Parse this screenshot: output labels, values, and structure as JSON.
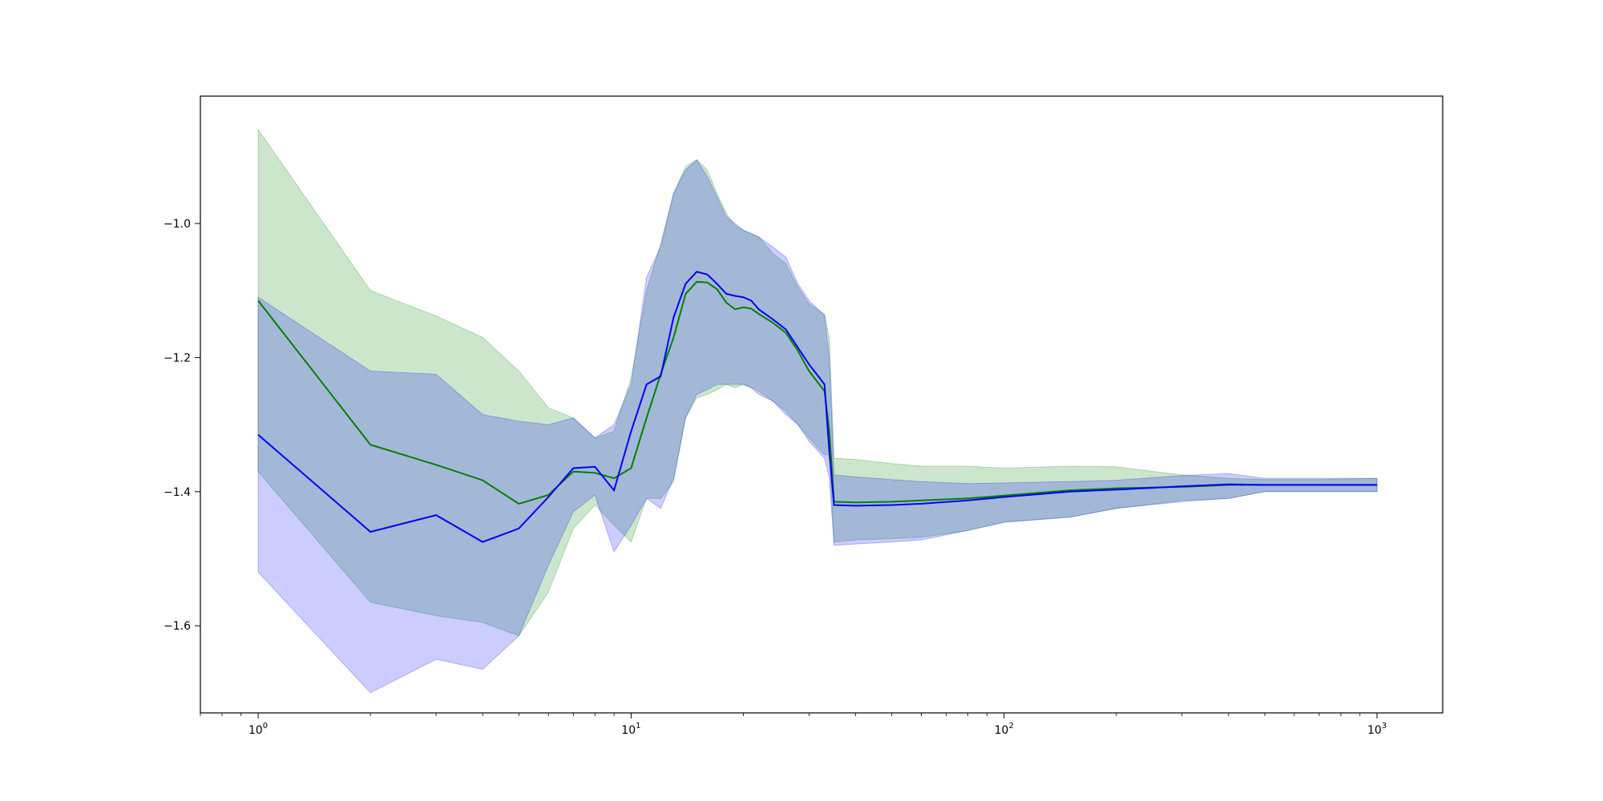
{
  "chart_data": {
    "type": "line",
    "title": "",
    "xlabel": "",
    "ylabel": "",
    "x_scale": "log",
    "xlim": [
      0.7,
      1500
    ],
    "ylim": [
      -1.73,
      -0.81
    ],
    "grid": false,
    "x_ticks": [
      {
        "value": 1,
        "base": "10",
        "exp": "0"
      },
      {
        "value": 10,
        "base": "10",
        "exp": "1"
      },
      {
        "value": 100,
        "base": "10",
        "exp": "2"
      },
      {
        "value": 1000,
        "base": "10",
        "exp": "3"
      }
    ],
    "y_ticks": [
      {
        "value": -1.0,
        "label": "−1.0"
      },
      {
        "value": -1.2,
        "label": "−1.2"
      },
      {
        "value": -1.4,
        "label": "−1.4"
      },
      {
        "value": -1.6,
        "label": "−1.6"
      }
    ],
    "series": [
      {
        "color": "#008000",
        "band_color": "#008000",
        "band_opacity": 0.2,
        "x": [
          1,
          2,
          3,
          4,
          5,
          6,
          7,
          8,
          9,
          10,
          11,
          12,
          13,
          14,
          15,
          16,
          17,
          18,
          19,
          20,
          21,
          22,
          24,
          26,
          28,
          30,
          33,
          34,
          35,
          40,
          50,
          60,
          80,
          100,
          150,
          200,
          300,
          400,
          500,
          700,
          1000
        ],
        "y": [
          -1.115,
          -1.33,
          -1.36,
          -1.383,
          -1.418,
          -1.405,
          -1.37,
          -1.372,
          -1.38,
          -1.365,
          -1.29,
          -1.225,
          -1.17,
          -1.105,
          -1.087,
          -1.088,
          -1.098,
          -1.118,
          -1.128,
          -1.125,
          -1.127,
          -1.135,
          -1.148,
          -1.163,
          -1.19,
          -1.22,
          -1.25,
          -1.31,
          -1.415,
          -1.416,
          -1.415,
          -1.413,
          -1.41,
          -1.406,
          -1.398,
          -1.395,
          -1.393,
          -1.39,
          -1.39,
          -1.39,
          -1.39
        ],
        "upper": [
          -0.86,
          -1.1,
          -1.138,
          -1.17,
          -1.22,
          -1.275,
          -1.29,
          -1.32,
          -1.31,
          -1.23,
          -1.1,
          -1.03,
          -0.955,
          -0.915,
          -0.905,
          -0.92,
          -0.955,
          -0.985,
          -1.003,
          -1.01,
          -1.015,
          -1.02,
          -1.045,
          -1.06,
          -1.095,
          -1.12,
          -1.135,
          -1.17,
          -1.35,
          -1.352,
          -1.358,
          -1.362,
          -1.362,
          -1.365,
          -1.362,
          -1.363,
          -1.375,
          -1.38,
          -1.382,
          -1.382,
          -1.38
        ],
        "lower": [
          -1.37,
          -1.565,
          -1.585,
          -1.595,
          -1.615,
          -1.55,
          -1.455,
          -1.42,
          -1.45,
          -1.475,
          -1.41,
          -1.41,
          -1.385,
          -1.29,
          -1.26,
          -1.255,
          -1.248,
          -1.24,
          -1.245,
          -1.24,
          -1.245,
          -1.25,
          -1.265,
          -1.28,
          -1.3,
          -1.32,
          -1.345,
          -1.345,
          -1.475,
          -1.472,
          -1.47,
          -1.468,
          -1.458,
          -1.445,
          -1.438,
          -1.425,
          -1.413,
          -1.41,
          -1.4,
          -1.4,
          -1.4
        ]
      },
      {
        "color": "#0000ff",
        "band_color": "#0000ff",
        "band_opacity": 0.2,
        "x": [
          1,
          2,
          3,
          4,
          5,
          6,
          7,
          8,
          9,
          10,
          11,
          12,
          13,
          14,
          15,
          16,
          17,
          18,
          19,
          20,
          21,
          22,
          24,
          26,
          28,
          30,
          33,
          34,
          35,
          40,
          50,
          60,
          80,
          100,
          150,
          200,
          300,
          400,
          500,
          700,
          1000
        ],
        "y": [
          -1.315,
          -1.46,
          -1.435,
          -1.475,
          -1.455,
          -1.408,
          -1.365,
          -1.363,
          -1.398,
          -1.31,
          -1.24,
          -1.228,
          -1.14,
          -1.09,
          -1.072,
          -1.076,
          -1.09,
          -1.105,
          -1.108,
          -1.11,
          -1.115,
          -1.128,
          -1.143,
          -1.158,
          -1.185,
          -1.21,
          -1.24,
          -1.34,
          -1.42,
          -1.421,
          -1.42,
          -1.418,
          -1.413,
          -1.408,
          -1.4,
          -1.397,
          -1.392,
          -1.389,
          -1.39,
          -1.39,
          -1.39
        ],
        "upper": [
          -1.11,
          -1.22,
          -1.225,
          -1.285,
          -1.295,
          -1.3,
          -1.29,
          -1.32,
          -1.3,
          -1.24,
          -1.08,
          -1.035,
          -0.955,
          -0.92,
          -0.905,
          -0.93,
          -0.96,
          -0.99,
          -1.0,
          -1.01,
          -1.015,
          -1.02,
          -1.035,
          -1.05,
          -1.09,
          -1.115,
          -1.137,
          -1.2,
          -1.375,
          -1.378,
          -1.382,
          -1.385,
          -1.388,
          -1.387,
          -1.385,
          -1.383,
          -1.376,
          -1.373,
          -1.38,
          -1.38,
          -1.38
        ],
        "lower": [
          -1.52,
          -1.7,
          -1.65,
          -1.665,
          -1.615,
          -1.51,
          -1.43,
          -1.405,
          -1.49,
          -1.45,
          -1.41,
          -1.425,
          -1.38,
          -1.29,
          -1.255,
          -1.248,
          -1.24,
          -1.24,
          -1.24,
          -1.24,
          -1.245,
          -1.255,
          -1.265,
          -1.285,
          -1.3,
          -1.325,
          -1.35,
          -1.38,
          -1.48,
          -1.478,
          -1.475,
          -1.472,
          -1.458,
          -1.446,
          -1.438,
          -1.425,
          -1.415,
          -1.41,
          -1.4,
          -1.4,
          -1.4
        ]
      }
    ]
  }
}
